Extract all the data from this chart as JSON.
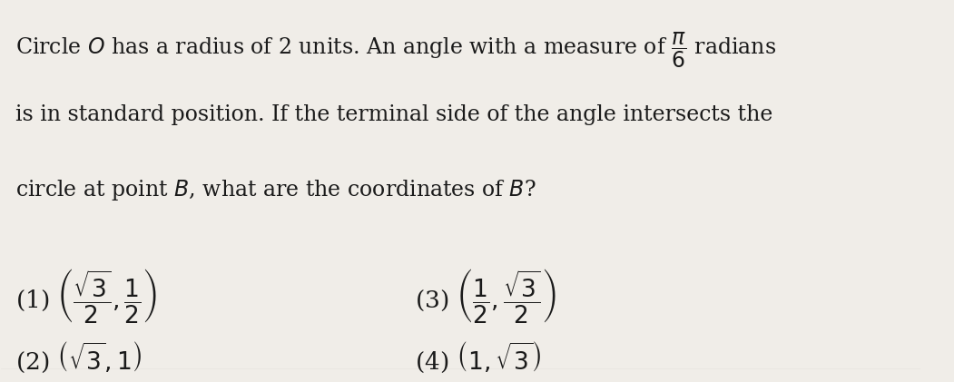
{
  "background_color": "#f0ede8",
  "text_color": "#1a1a1a",
  "title_line1": "Circle $O$ has a radius of 2 units. An angle with a measure of $\\dfrac{\\pi}{6}$ radians",
  "title_line2": "is in standard position. If the terminal side of the angle intersects the",
  "title_line3": "circle at point $B$, what are the coordinates of $B$?",
  "option1": "(1) $\\left(\\dfrac{\\sqrt{3}}{2},\\dfrac{1}{2}\\right)$",
  "option2": "(2) $\\left(\\sqrt{3},1\\right)$",
  "option3": "(3) $\\left(\\dfrac{1}{2},\\dfrac{\\sqrt{3}}{2}\\right)$",
  "option4": "(4) $\\left(1,\\sqrt{3}\\right)$",
  "figsize": [
    10.51,
    4.21
  ],
  "dpi": 100,
  "font_size_text": 17,
  "font_size_options": 19
}
